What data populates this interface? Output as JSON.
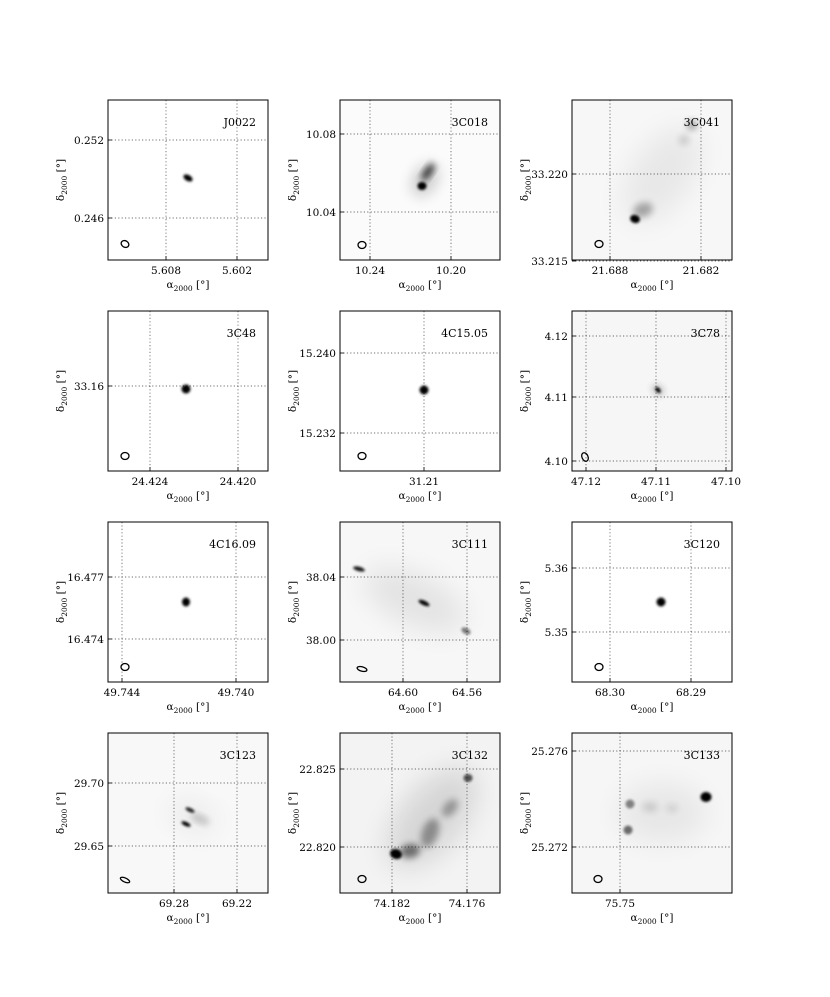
{
  "figure": {
    "panels": [
      {
        "source": "J0022",
        "x_ticks": [
          "5.608",
          "5.602"
        ],
        "y_ticks": [
          "0.252",
          "0.246"
        ]
      },
      {
        "source": "3C018",
        "x_ticks": [
          "10.24",
          "10.20"
        ],
        "y_ticks": [
          "10.08",
          "10.04"
        ]
      },
      {
        "source": "3C041",
        "x_ticks": [
          "21.688",
          "21.682"
        ],
        "y_ticks": [
          "33.220",
          "33.215"
        ]
      },
      {
        "source": "3C48",
        "x_ticks": [
          "24.424",
          "24.420"
        ],
        "y_ticks": [
          "33.16"
        ]
      },
      {
        "source": "4C15.05",
        "x_ticks": [
          "31.21"
        ],
        "y_ticks": [
          "15.240",
          "15.232"
        ]
      },
      {
        "source": "3C78",
        "x_ticks": [
          "47.12",
          "47.11",
          "47.10"
        ],
        "y_ticks": [
          "4.12",
          "4.11",
          "4.10"
        ]
      },
      {
        "source": "4C16.09",
        "x_ticks": [
          "49.744",
          "49.740"
        ],
        "y_ticks": [
          "16.477",
          "16.474"
        ]
      },
      {
        "source": "3C111",
        "x_ticks": [
          "64.60",
          "64.56"
        ],
        "y_ticks": [
          "38.04",
          "38.00"
        ]
      },
      {
        "source": "3C120",
        "x_ticks": [
          "68.30",
          "68.29"
        ],
        "y_ticks": [
          "5.36",
          "5.35"
        ]
      },
      {
        "source": "3C123",
        "x_ticks": [
          "69.28",
          "69.22"
        ],
        "y_ticks": [
          "29.70",
          "29.65"
        ]
      },
      {
        "source": "3C132",
        "x_ticks": [
          "74.182",
          "74.176"
        ],
        "y_ticks": [
          "22.825",
          "22.820"
        ]
      },
      {
        "source": "3C133",
        "x_ticks": [
          "75.75"
        ],
        "y_ticks": [
          "25.276",
          "25.272"
        ]
      }
    ],
    "x_axis_label": "α",
    "x_axis_sub": "2000",
    "x_axis_unit": " [°]",
    "y_axis_label": "δ",
    "y_axis_sub": "2000",
    "y_axis_unit": " [°]"
  }
}
